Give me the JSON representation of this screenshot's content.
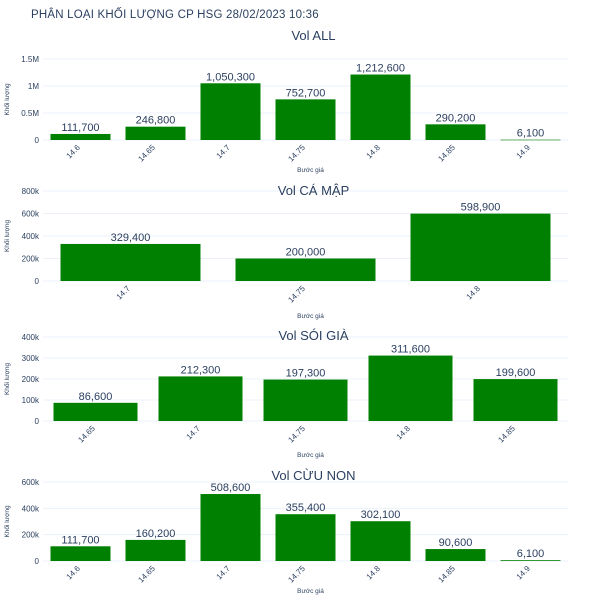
{
  "page": {
    "title": "PHÂN LOẠI KHỐI LƯỢNG CP HSG 28/02/2023 10:36"
  },
  "colors": {
    "bar": "#008000",
    "text": "#2a3f5f",
    "grid": "#ebf0f8"
  },
  "chart_data": [
    {
      "type": "bar",
      "title": "Vol ALL",
      "xlabel": "Bước giá",
      "ylabel": "Khối lượng",
      "categories": [
        "14.6",
        "14.65",
        "14.7",
        "14.75",
        "14.8",
        "14.85",
        "14.9"
      ],
      "values": [
        111700,
        246800,
        1050300,
        752700,
        1212600,
        290200,
        6100
      ],
      "value_labels": [
        "111,700",
        "246,800",
        "1,050,300",
        "752,700",
        "1,212,600",
        "290,200",
        "6,100"
      ],
      "yticks": [
        0,
        500000,
        1000000,
        1500000
      ],
      "ytick_labels": [
        "0",
        "0.5M",
        "1M",
        "1.5M"
      ],
      "ylim": [
        0,
        1500000
      ],
      "grid": true
    },
    {
      "type": "bar",
      "title": "Vol CÁ MẬP",
      "xlabel": "Bước giá",
      "ylabel": "Khối lượng",
      "categories": [
        "14.7",
        "14.75",
        "14.8"
      ],
      "values": [
        329400,
        200000,
        598900
      ],
      "value_labels": [
        "329,400",
        "200,000",
        "598,900"
      ],
      "yticks": [
        0,
        200000,
        400000,
        600000,
        800000
      ],
      "ytick_labels": [
        "0",
        "200k",
        "400k",
        "600k",
        "800k"
      ],
      "ylim": [
        0,
        800000
      ],
      "grid": true
    },
    {
      "type": "bar",
      "title": "Vol SÓI GIÀ",
      "xlabel": "Bước giá",
      "ylabel": "Khối lượng",
      "categories": [
        "14.65",
        "14.7",
        "14.75",
        "14.8",
        "14.85"
      ],
      "values": [
        86600,
        212300,
        197300,
        311600,
        199600
      ],
      "value_labels": [
        "86,600",
        "212,300",
        "197,300",
        "311,600",
        "199,600"
      ],
      "yticks": [
        0,
        100000,
        200000,
        300000,
        400000
      ],
      "ytick_labels": [
        "0",
        "100k",
        "200k",
        "300k",
        "400k"
      ],
      "ylim": [
        0,
        400000
      ],
      "grid": true
    },
    {
      "type": "bar",
      "title": "Vol CỪU NON",
      "xlabel": "Bước giá",
      "ylabel": "Khối lượng",
      "categories": [
        "14.6",
        "14.65",
        "14.7",
        "14.75",
        "14.8",
        "14.85",
        "14.9"
      ],
      "values": [
        111700,
        160200,
        508600,
        355400,
        302100,
        90600,
        6100
      ],
      "value_labels": [
        "111,700",
        "160,200",
        "508,600",
        "355,400",
        "302,100",
        "90,600",
        "6,100"
      ],
      "yticks": [
        0,
        200000,
        400000,
        600000
      ],
      "ytick_labels": [
        "0",
        "200k",
        "400k",
        "600k"
      ],
      "ylim": [
        0,
        600000
      ],
      "grid": true
    }
  ]
}
